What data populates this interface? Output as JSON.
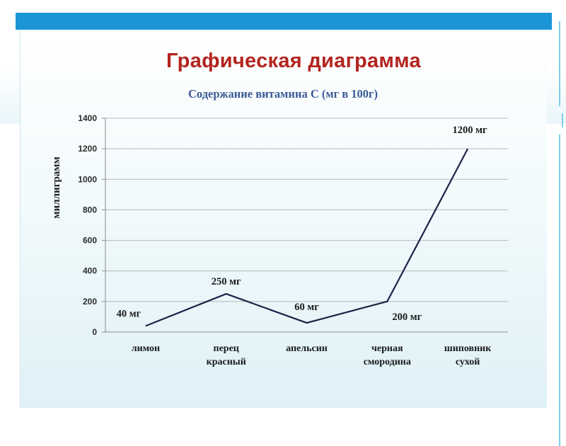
{
  "slide": {
    "title": "Графическая диаграмма",
    "subtitle": "Содержание витамина  С (мг в 100г)"
  },
  "chart_data": {
    "type": "line",
    "title": "Содержание витамина  С (мг в 100г)",
    "ylabel": "миллиграмм",
    "xlabel": "",
    "categories": [
      [
        "лимон"
      ],
      [
        "перец",
        "красный"
      ],
      [
        "апельсин"
      ],
      [
        "черная",
        "смородина"
      ],
      [
        "шиповник",
        "сухой"
      ]
    ],
    "values": [
      40,
      250,
      60,
      200,
      1200
    ],
    "data_labels": [
      "40 мг",
      "250 мг",
      "60 мг",
      "200 мг",
      "1200 мг"
    ],
    "ylim": [
      0,
      1400
    ],
    "yticks": [
      0,
      200,
      400,
      600,
      800,
      1000,
      1200,
      1400
    ],
    "grid": true,
    "line_color": "#1f2147"
  }
}
